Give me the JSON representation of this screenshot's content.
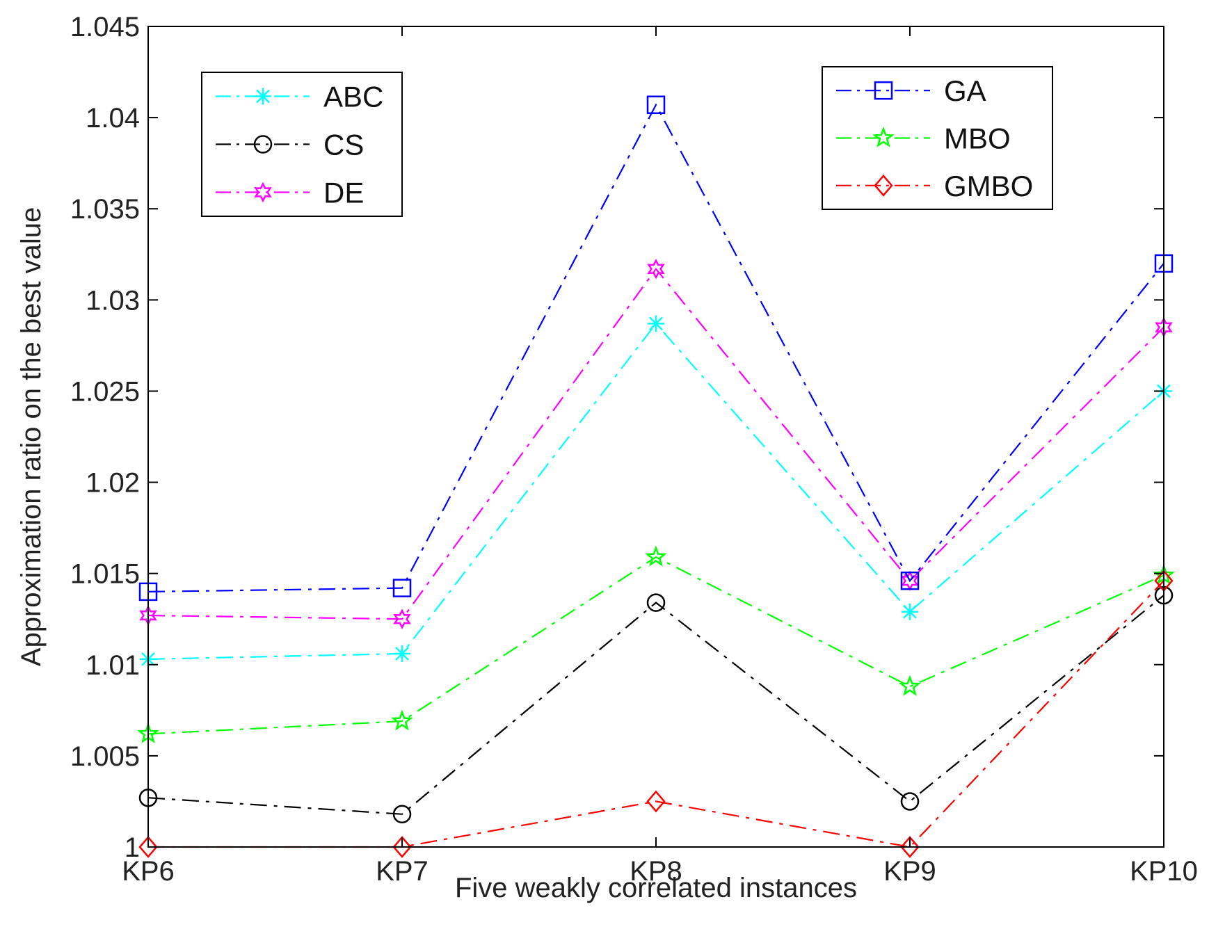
{
  "chart_data": {
    "type": "line",
    "title": "",
    "xlabel": "Five weakly correlated instances",
    "ylabel": "Approximation ratio on the best value",
    "categories": [
      "KP6",
      "KP7",
      "KP8",
      "KP9",
      "KP10"
    ],
    "ylim": [
      1.0,
      1.045
    ],
    "yticks": [
      1.0,
      1.005,
      1.01,
      1.015,
      1.02,
      1.025,
      1.03,
      1.035,
      1.04,
      1.045
    ],
    "ytick_labels": [
      "1",
      "1.005",
      "1.01",
      "1.015",
      "1.02",
      "1.025",
      "1.03",
      "1.035",
      "1.04",
      "1.045"
    ],
    "grid": false,
    "series": [
      {
        "name": "ABC",
        "color": "#00ffff",
        "marker": "asterisk",
        "values": [
          1.0103,
          1.0106,
          1.0287,
          1.0129,
          1.025
        ]
      },
      {
        "name": "CS",
        "color": "#000000",
        "marker": "circle",
        "values": [
          1.0027,
          1.0018,
          1.0134,
          1.0025,
          1.0138
        ]
      },
      {
        "name": "DE",
        "color": "#ff00ff",
        "marker": "hexagram",
        "values": [
          1.0127,
          1.0125,
          1.0317,
          1.0146,
          1.0285
        ]
      },
      {
        "name": "GA",
        "color": "#0000ff",
        "marker": "square",
        "values": [
          1.014,
          1.0142,
          1.0407,
          1.0146,
          1.032
        ]
      },
      {
        "name": "MBO",
        "color": "#00ff00",
        "marker": "pentagram",
        "values": [
          1.0062,
          1.0069,
          1.0159,
          1.0088,
          1.0149
        ]
      },
      {
        "name": "GMBO",
        "color": "#ff0000",
        "marker": "diamond",
        "values": [
          1.0,
          1.0,
          1.0025,
          1.0,
          1.0146
        ]
      }
    ],
    "legends": [
      {
        "position": "top-left",
        "entries": [
          "ABC",
          "CS",
          "DE"
        ]
      },
      {
        "position": "top-right",
        "entries": [
          "GA",
          "MBO",
          "GMBO"
        ]
      }
    ]
  }
}
